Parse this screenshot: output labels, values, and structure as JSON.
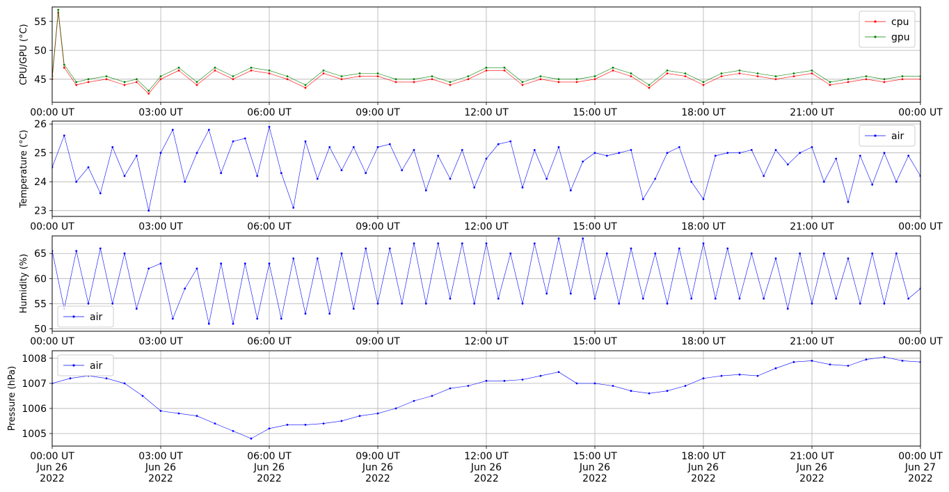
{
  "figure": {
    "x_tick_labels": [
      "00:00 UT",
      "03:00 UT",
      "06:00 UT",
      "09:00 UT",
      "12:00 UT",
      "15:00 UT",
      "18:00 UT",
      "21:00 UT",
      "00:00 UT"
    ],
    "x_tick_dates": [
      "Jun 26",
      "Jun 26",
      "Jun 26",
      "Jun 26",
      "Jun 26",
      "Jun 26",
      "Jun 26",
      "Jun 26",
      "Jun 27"
    ],
    "x_tick_years": [
      "2022",
      "2022",
      "2022",
      "2022",
      "2022",
      "2022",
      "2022",
      "2022",
      "2022"
    ]
  },
  "chart_data": [
    {
      "type": "line",
      "ylabel": "CPU/GPU (°C)",
      "x_range": [
        "2022-06-26 00:00",
        "2022-06-27 00:00"
      ],
      "ylim": [
        41,
        57.5
      ],
      "yticks": [
        45,
        50,
        55
      ],
      "grid": true,
      "legend": "top-right",
      "series": [
        {
          "name": "cpu",
          "color": "#ff0000",
          "x": [
            "00:00",
            "00:10",
            "00:20",
            "00:40",
            "01:00",
            "01:30",
            "02:00",
            "02:20",
            "02:40",
            "03:00",
            "03:30",
            "04:00",
            "04:30",
            "05:00",
            "05:30",
            "06:00",
            "06:30",
            "07:00",
            "07:30",
            "08:00",
            "08:30",
            "09:00",
            "09:30",
            "10:00",
            "10:30",
            "11:00",
            "11:30",
            "12:00",
            "12:30",
            "13:00",
            "13:30",
            "14:00",
            "14:30",
            "15:00",
            "15:30",
            "16:00",
            "16:30",
            "17:00",
            "17:30",
            "18:00",
            "18:30",
            "19:00",
            "19:30",
            "20:00",
            "20:30",
            "21:00",
            "21:30",
            "22:00",
            "22:30",
            "23:00",
            "23:30",
            "00:00"
          ],
          "values": [
            45,
            56.5,
            47,
            44,
            44.5,
            45,
            44,
            44.5,
            42.5,
            45,
            46.5,
            44,
            46.5,
            45,
            46.5,
            46,
            45,
            43.5,
            46,
            45,
            45.5,
            45.5,
            44.5,
            44.5,
            45,
            44,
            45,
            46.5,
            46.5,
            44,
            45,
            44.5,
            44.5,
            45,
            46.5,
            45.5,
            43.5,
            46,
            45.5,
            44,
            45.5,
            46,
            45.5,
            45,
            45.5,
            46,
            44,
            44.5,
            45,
            44.5,
            45,
            45
          ]
        },
        {
          "name": "gpu",
          "color": "#008000",
          "x": [
            "00:00",
            "00:10",
            "00:20",
            "00:40",
            "01:00",
            "01:30",
            "02:00",
            "02:20",
            "02:40",
            "03:00",
            "03:30",
            "04:00",
            "04:30",
            "05:00",
            "05:30",
            "06:00",
            "06:30",
            "07:00",
            "07:30",
            "08:00",
            "08:30",
            "09:00",
            "09:30",
            "10:00",
            "10:30",
            "11:00",
            "11:30",
            "12:00",
            "12:30",
            "13:00",
            "13:30",
            "14:00",
            "14:30",
            "15:00",
            "15:30",
            "16:00",
            "16:30",
            "17:00",
            "17:30",
            "18:00",
            "18:30",
            "19:00",
            "19:30",
            "20:00",
            "20:30",
            "21:00",
            "21:30",
            "22:00",
            "22:30",
            "23:00",
            "23:30",
            "00:00"
          ],
          "values": [
            45.5,
            57,
            47.5,
            44.5,
            45,
            45.5,
            44.5,
            45,
            43,
            45.5,
            47,
            44.5,
            47,
            45.5,
            47,
            46.5,
            45.5,
            44,
            46.5,
            45.5,
            46,
            46,
            45,
            45,
            45.5,
            44.5,
            45.5,
            47,
            47,
            44.5,
            45.5,
            45,
            45,
            45.5,
            47,
            46,
            44,
            46.5,
            46,
            44.5,
            46,
            46.5,
            46,
            45.5,
            46,
            46.5,
            44.5,
            45,
            45.5,
            45,
            45.5,
            45.5
          ]
        }
      ]
    },
    {
      "type": "line",
      "ylabel": "Temperature (°C)",
      "x_range": [
        "2022-06-26 00:00",
        "2022-06-27 00:00"
      ],
      "ylim": [
        22.8,
        26.1
      ],
      "yticks": [
        23,
        24,
        25,
        26
      ],
      "grid": true,
      "legend": "top-right",
      "series": [
        {
          "name": "air",
          "color": "#0000ff",
          "x": [
            "00:00",
            "00:20",
            "00:40",
            "01:00",
            "01:20",
            "01:40",
            "02:00",
            "02:20",
            "02:40",
            "03:00",
            "03:20",
            "03:40",
            "04:00",
            "04:20",
            "04:40",
            "05:00",
            "05:20",
            "05:40",
            "06:00",
            "06:20",
            "06:40",
            "07:00",
            "07:20",
            "07:40",
            "08:00",
            "08:20",
            "08:40",
            "09:00",
            "09:20",
            "09:40",
            "10:00",
            "10:20",
            "10:40",
            "11:00",
            "11:20",
            "11:40",
            "12:00",
            "12:20",
            "12:40",
            "13:00",
            "13:20",
            "13:40",
            "14:00",
            "14:20",
            "14:40",
            "15:00",
            "15:20",
            "15:40",
            "16:00",
            "16:20",
            "16:40",
            "17:00",
            "17:20",
            "17:40",
            "18:00",
            "18:20",
            "18:40",
            "19:00",
            "19:20",
            "19:40",
            "20:00",
            "20:20",
            "20:40",
            "21:00",
            "21:20",
            "21:40",
            "22:00",
            "22:20",
            "22:40",
            "23:00",
            "23:20",
            "23:40",
            "00:00"
          ],
          "values": [
            24.5,
            25.6,
            24,
            24.5,
            23.6,
            25.2,
            24.2,
            24.9,
            23.0,
            25.0,
            25.8,
            24.0,
            25.0,
            25.8,
            24.3,
            25.4,
            25.5,
            24.2,
            25.9,
            24.3,
            23.1,
            25.4,
            24.1,
            25.2,
            24.4,
            25.2,
            24.3,
            25.2,
            25.3,
            24.4,
            25.1,
            23.7,
            24.9,
            24.1,
            25.1,
            23.8,
            24.8,
            25.3,
            25.4,
            23.8,
            25.1,
            24.1,
            25.2,
            23.7,
            24.7,
            25.0,
            24.9,
            25.0,
            25.1,
            23.4,
            24.1,
            25.0,
            25.2,
            24.0,
            23.4,
            24.9,
            25.0,
            25.0,
            25.1,
            24.2,
            25.1,
            24.6,
            25.0,
            25.2,
            24.0,
            24.8,
            23.3,
            24.9,
            23.9,
            25.0,
            24.0,
            24.9,
            24.2
          ]
        }
      ]
    },
    {
      "type": "line",
      "ylabel": "Humidity (%)",
      "x_range": [
        "2022-06-26 00:00",
        "2022-06-27 00:00"
      ],
      "ylim": [
        49.5,
        68.5
      ],
      "yticks": [
        50,
        55,
        60,
        65
      ],
      "grid": true,
      "legend": "bottom-left",
      "series": [
        {
          "name": "air",
          "color": "#0000ff",
          "x": [
            "00:00",
            "00:20",
            "00:40",
            "01:00",
            "01:20",
            "01:40",
            "02:00",
            "02:20",
            "02:40",
            "03:00",
            "03:20",
            "03:40",
            "04:00",
            "04:20",
            "04:40",
            "05:00",
            "05:20",
            "05:40",
            "06:00",
            "06:20",
            "06:40",
            "07:00",
            "07:20",
            "07:40",
            "08:00",
            "08:20",
            "08:40",
            "09:00",
            "09:20",
            "09:40",
            "10:00",
            "10:20",
            "10:40",
            "11:00",
            "11:20",
            "11:40",
            "12:00",
            "12:20",
            "12:40",
            "13:00",
            "13:20",
            "13:40",
            "14:00",
            "14:20",
            "14:40",
            "15:00",
            "15:20",
            "15:40",
            "16:00",
            "16:20",
            "16:40",
            "17:00",
            "17:20",
            "17:40",
            "18:00",
            "18:20",
            "18:40",
            "19:00",
            "19:20",
            "19:40",
            "20:00",
            "20:20",
            "20:40",
            "21:00",
            "21:20",
            "21:40",
            "22:00",
            "22:20",
            "22:40",
            "23:00",
            "23:20",
            "23:40",
            "00:00"
          ],
          "values": [
            65.5,
            54,
            65.5,
            55,
            66,
            55,
            65,
            54,
            62,
            63,
            52,
            58,
            62,
            51,
            63,
            51,
            63,
            52,
            63,
            52,
            64,
            53,
            64,
            53,
            65,
            54,
            66,
            55,
            66,
            55,
            67,
            55,
            67,
            56,
            67,
            55,
            67,
            56,
            65,
            55,
            67,
            57,
            68,
            57,
            68,
            56,
            65,
            55,
            66,
            56,
            65,
            55,
            66,
            56,
            67,
            56,
            66,
            56,
            65,
            56,
            64,
            54,
            65,
            55,
            65,
            56,
            64,
            55,
            65,
            55,
            65,
            56,
            58
          ]
        }
      ]
    },
    {
      "type": "line",
      "ylabel": "Pressure (hPa)",
      "x_range": [
        "2022-06-26 00:00",
        "2022-06-27 00:00"
      ],
      "ylim": [
        1004.5,
        1008.3
      ],
      "yticks": [
        1005,
        1006,
        1007,
        1008
      ],
      "grid": true,
      "legend": "top-left",
      "series": [
        {
          "name": "air",
          "color": "#0000ff",
          "x": [
            "00:00",
            "00:30",
            "01:00",
            "01:30",
            "02:00",
            "02:30",
            "03:00",
            "03:30",
            "04:00",
            "04:30",
            "05:00",
            "05:30",
            "06:00",
            "06:30",
            "07:00",
            "07:30",
            "08:00",
            "08:30",
            "09:00",
            "09:30",
            "10:00",
            "10:30",
            "11:00",
            "11:30",
            "12:00",
            "12:30",
            "13:00",
            "13:30",
            "14:00",
            "14:30",
            "15:00",
            "15:30",
            "16:00",
            "16:30",
            "17:00",
            "17:30",
            "18:00",
            "18:30",
            "19:00",
            "19:30",
            "20:00",
            "20:30",
            "21:00",
            "21:30",
            "22:00",
            "22:30",
            "23:00",
            "23:30",
            "00:00"
          ],
          "values": [
            1007.0,
            1007.2,
            1007.3,
            1007.2,
            1007.0,
            1006.5,
            1005.9,
            1005.8,
            1005.7,
            1005.4,
            1005.1,
            1004.8,
            1005.2,
            1005.35,
            1005.35,
            1005.4,
            1005.5,
            1005.7,
            1005.8,
            1006.0,
            1006.3,
            1006.5,
            1006.8,
            1006.9,
            1007.1,
            1007.1,
            1007.15,
            1007.3,
            1007.45,
            1007.0,
            1007.0,
            1006.9,
            1006.7,
            1006.6,
            1006.7,
            1006.9,
            1007.2,
            1007.3,
            1007.35,
            1007.3,
            1007.6,
            1007.85,
            1007.9,
            1007.75,
            1007.7,
            1007.95,
            1008.05,
            1007.9,
            1007.85
          ]
        }
      ]
    }
  ]
}
